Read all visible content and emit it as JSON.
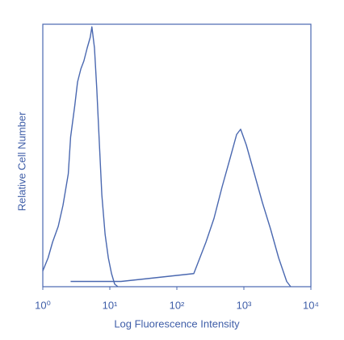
{
  "chart_data": {
    "type": "line",
    "x_label": "Log Fluorescence Intensity",
    "y_label": "Relative Cell Number",
    "xscale": "log",
    "xlim": [
      1,
      10000
    ],
    "ylim": [
      0,
      100
    ],
    "xticks": [
      {
        "value": 1,
        "label": "10⁰"
      },
      {
        "value": 10,
        "label": "10¹"
      },
      {
        "value": 100,
        "label": "10²"
      },
      {
        "value": 1000,
        "label": "10³"
      },
      {
        "value": 10000,
        "label": "10⁴"
      }
    ],
    "series": [
      {
        "color": "#4a68b0",
        "x": [
          1,
          1.2,
          1.4,
          1.7,
          2,
          2.4,
          2.6,
          3,
          3.3,
          3.7,
          4.1,
          4.6,
          5.1,
          5.4,
          5.9,
          6.4,
          7,
          7.6,
          8.5,
          9.5,
          10.6,
          11.8,
          13.2
        ],
        "values": [
          6,
          11,
          17,
          23,
          31,
          43,
          57,
          69,
          78,
          83,
          86,
          91,
          95,
          99,
          91,
          75,
          54,
          35,
          20,
          11,
          5,
          1,
          0
        ]
      },
      {
        "color": "#4a68b0",
        "x": [
          2.6,
          6.4,
          14.7,
          34,
          78,
          179,
          272,
          358,
          473,
          624,
          780,
          895,
          1087,
          1435,
          1893,
          2500,
          3300,
          4353,
          5000
        ],
        "values": [
          2,
          2,
          2,
          3,
          4,
          5,
          17,
          26,
          38,
          49,
          58,
          60,
          54,
          43,
          32,
          22,
          11,
          2,
          0
        ]
      }
    ]
  }
}
